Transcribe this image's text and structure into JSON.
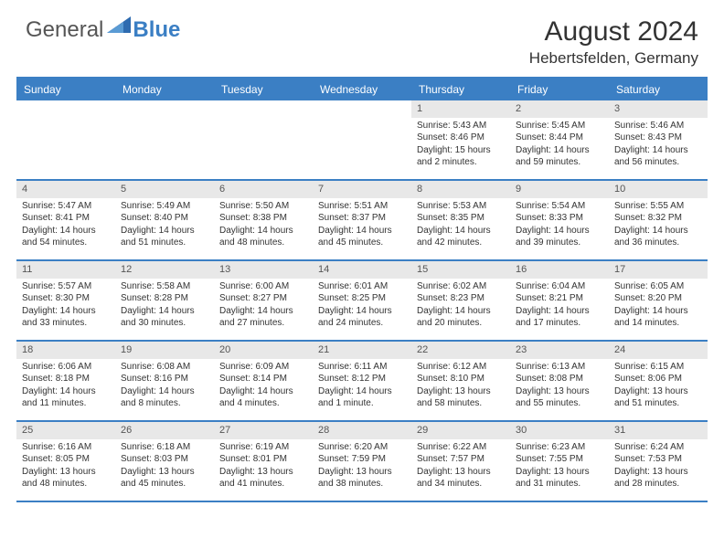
{
  "brand": {
    "general": "General",
    "blue": "Blue"
  },
  "title": "August 2024",
  "location": "Hebertsfelden, Germany",
  "colors": {
    "accent": "#3b7fc4",
    "daynum_bg": "#e8e8e8",
    "text": "#333333",
    "bg": "#ffffff"
  },
  "weekdays": [
    "Sunday",
    "Monday",
    "Tuesday",
    "Wednesday",
    "Thursday",
    "Friday",
    "Saturday"
  ],
  "weeks": [
    [
      {
        "n": "",
        "sr": "",
        "ss": "",
        "dl": ""
      },
      {
        "n": "",
        "sr": "",
        "ss": "",
        "dl": ""
      },
      {
        "n": "",
        "sr": "",
        "ss": "",
        "dl": ""
      },
      {
        "n": "",
        "sr": "",
        "ss": "",
        "dl": ""
      },
      {
        "n": "1",
        "sr": "Sunrise: 5:43 AM",
        "ss": "Sunset: 8:46 PM",
        "dl": "Daylight: 15 hours and 2 minutes."
      },
      {
        "n": "2",
        "sr": "Sunrise: 5:45 AM",
        "ss": "Sunset: 8:44 PM",
        "dl": "Daylight: 14 hours and 59 minutes."
      },
      {
        "n": "3",
        "sr": "Sunrise: 5:46 AM",
        "ss": "Sunset: 8:43 PM",
        "dl": "Daylight: 14 hours and 56 minutes."
      }
    ],
    [
      {
        "n": "4",
        "sr": "Sunrise: 5:47 AM",
        "ss": "Sunset: 8:41 PM",
        "dl": "Daylight: 14 hours and 54 minutes."
      },
      {
        "n": "5",
        "sr": "Sunrise: 5:49 AM",
        "ss": "Sunset: 8:40 PM",
        "dl": "Daylight: 14 hours and 51 minutes."
      },
      {
        "n": "6",
        "sr": "Sunrise: 5:50 AM",
        "ss": "Sunset: 8:38 PM",
        "dl": "Daylight: 14 hours and 48 minutes."
      },
      {
        "n": "7",
        "sr": "Sunrise: 5:51 AM",
        "ss": "Sunset: 8:37 PM",
        "dl": "Daylight: 14 hours and 45 minutes."
      },
      {
        "n": "8",
        "sr": "Sunrise: 5:53 AM",
        "ss": "Sunset: 8:35 PM",
        "dl": "Daylight: 14 hours and 42 minutes."
      },
      {
        "n": "9",
        "sr": "Sunrise: 5:54 AM",
        "ss": "Sunset: 8:33 PM",
        "dl": "Daylight: 14 hours and 39 minutes."
      },
      {
        "n": "10",
        "sr": "Sunrise: 5:55 AM",
        "ss": "Sunset: 8:32 PM",
        "dl": "Daylight: 14 hours and 36 minutes."
      }
    ],
    [
      {
        "n": "11",
        "sr": "Sunrise: 5:57 AM",
        "ss": "Sunset: 8:30 PM",
        "dl": "Daylight: 14 hours and 33 minutes."
      },
      {
        "n": "12",
        "sr": "Sunrise: 5:58 AM",
        "ss": "Sunset: 8:28 PM",
        "dl": "Daylight: 14 hours and 30 minutes."
      },
      {
        "n": "13",
        "sr": "Sunrise: 6:00 AM",
        "ss": "Sunset: 8:27 PM",
        "dl": "Daylight: 14 hours and 27 minutes."
      },
      {
        "n": "14",
        "sr": "Sunrise: 6:01 AM",
        "ss": "Sunset: 8:25 PM",
        "dl": "Daylight: 14 hours and 24 minutes."
      },
      {
        "n": "15",
        "sr": "Sunrise: 6:02 AM",
        "ss": "Sunset: 8:23 PM",
        "dl": "Daylight: 14 hours and 20 minutes."
      },
      {
        "n": "16",
        "sr": "Sunrise: 6:04 AM",
        "ss": "Sunset: 8:21 PM",
        "dl": "Daylight: 14 hours and 17 minutes."
      },
      {
        "n": "17",
        "sr": "Sunrise: 6:05 AM",
        "ss": "Sunset: 8:20 PM",
        "dl": "Daylight: 14 hours and 14 minutes."
      }
    ],
    [
      {
        "n": "18",
        "sr": "Sunrise: 6:06 AM",
        "ss": "Sunset: 8:18 PM",
        "dl": "Daylight: 14 hours and 11 minutes."
      },
      {
        "n": "19",
        "sr": "Sunrise: 6:08 AM",
        "ss": "Sunset: 8:16 PM",
        "dl": "Daylight: 14 hours and 8 minutes."
      },
      {
        "n": "20",
        "sr": "Sunrise: 6:09 AM",
        "ss": "Sunset: 8:14 PM",
        "dl": "Daylight: 14 hours and 4 minutes."
      },
      {
        "n": "21",
        "sr": "Sunrise: 6:11 AM",
        "ss": "Sunset: 8:12 PM",
        "dl": "Daylight: 14 hours and 1 minute."
      },
      {
        "n": "22",
        "sr": "Sunrise: 6:12 AM",
        "ss": "Sunset: 8:10 PM",
        "dl": "Daylight: 13 hours and 58 minutes."
      },
      {
        "n": "23",
        "sr": "Sunrise: 6:13 AM",
        "ss": "Sunset: 8:08 PM",
        "dl": "Daylight: 13 hours and 55 minutes."
      },
      {
        "n": "24",
        "sr": "Sunrise: 6:15 AM",
        "ss": "Sunset: 8:06 PM",
        "dl": "Daylight: 13 hours and 51 minutes."
      }
    ],
    [
      {
        "n": "25",
        "sr": "Sunrise: 6:16 AM",
        "ss": "Sunset: 8:05 PM",
        "dl": "Daylight: 13 hours and 48 minutes."
      },
      {
        "n": "26",
        "sr": "Sunrise: 6:18 AM",
        "ss": "Sunset: 8:03 PM",
        "dl": "Daylight: 13 hours and 45 minutes."
      },
      {
        "n": "27",
        "sr": "Sunrise: 6:19 AM",
        "ss": "Sunset: 8:01 PM",
        "dl": "Daylight: 13 hours and 41 minutes."
      },
      {
        "n": "28",
        "sr": "Sunrise: 6:20 AM",
        "ss": "Sunset: 7:59 PM",
        "dl": "Daylight: 13 hours and 38 minutes."
      },
      {
        "n": "29",
        "sr": "Sunrise: 6:22 AM",
        "ss": "Sunset: 7:57 PM",
        "dl": "Daylight: 13 hours and 34 minutes."
      },
      {
        "n": "30",
        "sr": "Sunrise: 6:23 AM",
        "ss": "Sunset: 7:55 PM",
        "dl": "Daylight: 13 hours and 31 minutes."
      },
      {
        "n": "31",
        "sr": "Sunrise: 6:24 AM",
        "ss": "Sunset: 7:53 PM",
        "dl": "Daylight: 13 hours and 28 minutes."
      }
    ]
  ]
}
